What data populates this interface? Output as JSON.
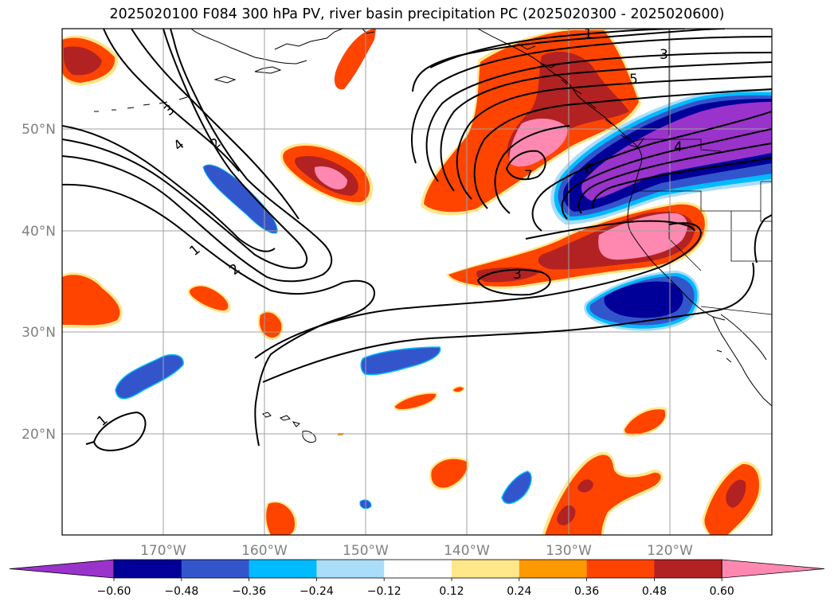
{
  "title": "2025020100 F084 300 hPa PV, river basin precipitation PC (2025020300 - 2025020600)",
  "map": {
    "lat_labels": [
      "50°N",
      "40°N",
      "30°N",
      "20°N"
    ],
    "lon_labels": [
      "170°W",
      "160°W",
      "150°W",
      "140°W",
      "130°W",
      "120°W"
    ],
    "contour_labels": [
      "1",
      "2",
      "3",
      "4",
      "5",
      "6",
      "7",
      "1",
      "2",
      "3",
      "4",
      "3",
      "1"
    ],
    "grid_color": "#a0a0a0"
  },
  "colorbar": {
    "ticks": [
      "−0.60",
      "−0.48",
      "−0.36",
      "−0.24",
      "−0.12",
      "0.12",
      "0.24",
      "0.36",
      "0.48",
      "0.60"
    ],
    "colors": [
      "#9933cc",
      "#000099",
      "#3355cc",
      "#00bbff",
      "#aaddf8",
      "#ffffff",
      "#ffe78a",
      "#ff9900",
      "#ff4400",
      "#b22222",
      "#ff88b0"
    ]
  }
}
